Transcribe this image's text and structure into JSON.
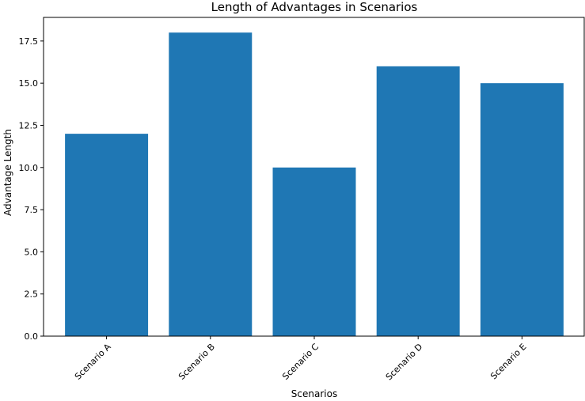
{
  "chart_data": {
    "type": "bar",
    "title": "Length of Advantages in Scenarios",
    "xlabel": "Scenarios",
    "ylabel": "Advantage Length",
    "categories": [
      "Scenario A",
      "Scenario B",
      "Scenario C",
      "Scenario D",
      "Scenario E"
    ],
    "values": [
      12,
      18,
      10,
      16,
      15
    ],
    "ylim": [
      0,
      18.9
    ],
    "yticks": [
      "0.0",
      "2.5",
      "5.0",
      "7.5",
      "10.0",
      "12.5",
      "15.0",
      "17.5"
    ],
    "grid": false,
    "legend": false,
    "bar_color": "#1f77b4"
  }
}
